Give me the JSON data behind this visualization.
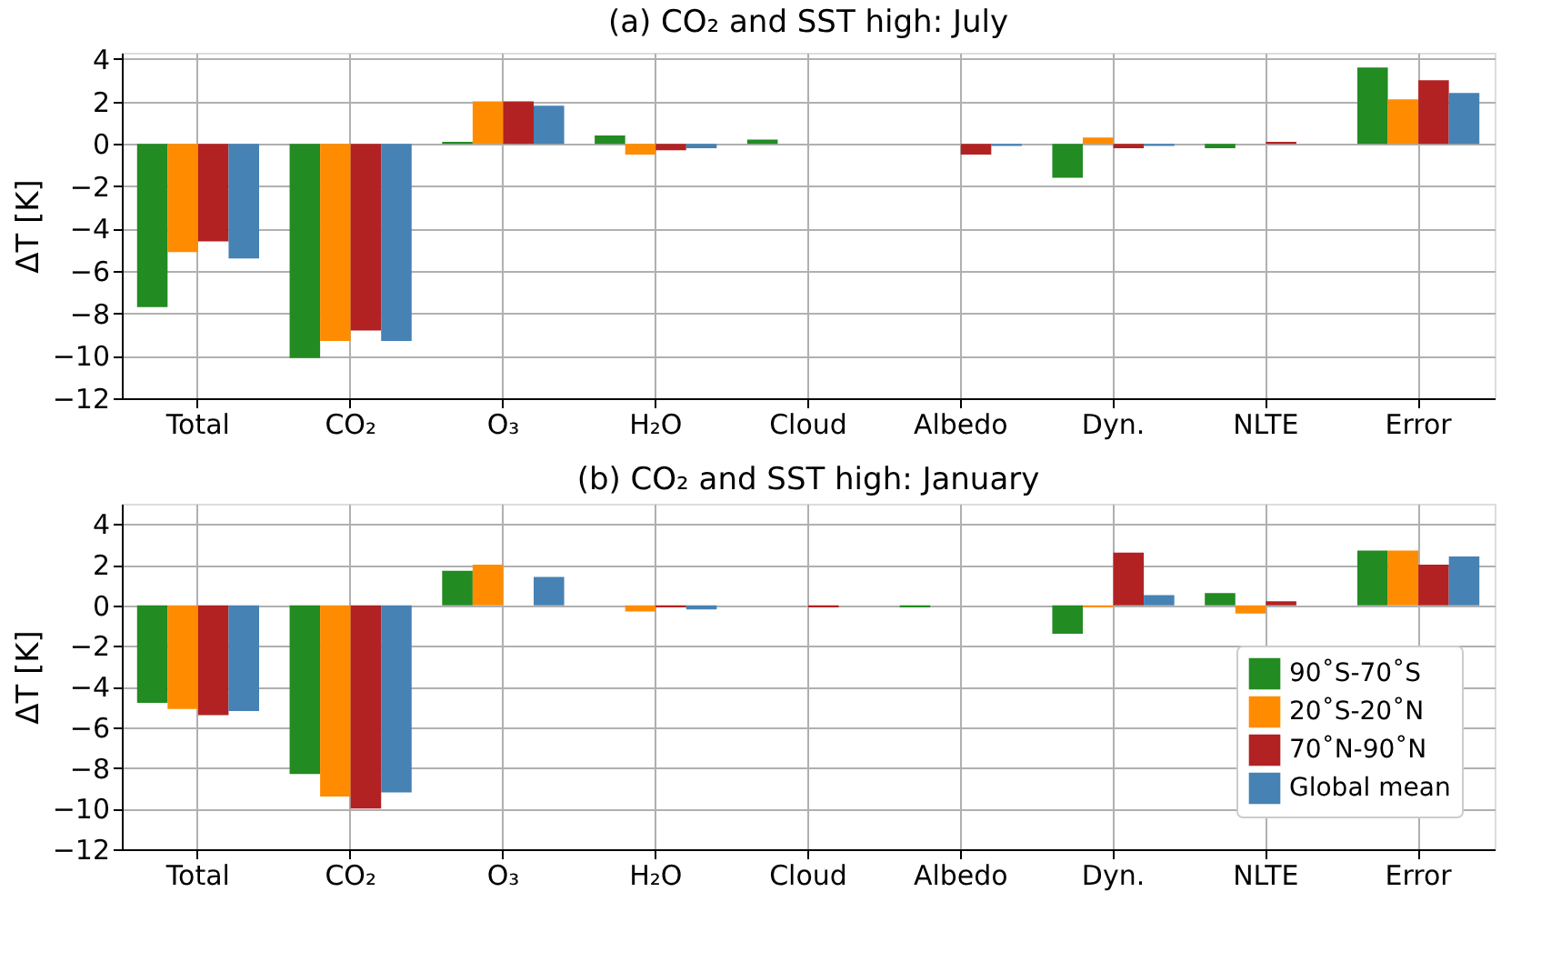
{
  "chart_data": [
    {
      "type": "bar",
      "title": "(a) CO₂ and SST high: July",
      "ylabel": "ΔT [K]",
      "categories": [
        "Total",
        "CO₂",
        "O₃",
        "H₂O",
        "Cloud",
        "Albedo",
        "Dyn.",
        "NLTE",
        "Error"
      ],
      "series": [
        {
          "color": "#228b22",
          "values": [
            -7.7,
            -10.1,
            0.1,
            0.4,
            0.2,
            0.0,
            -1.6,
            -0.2,
            3.6
          ]
        },
        {
          "color": "#ff8c00",
          "values": [
            -5.1,
            -9.3,
            2.0,
            -0.5,
            0.0,
            0.0,
            0.3,
            0.0,
            2.1
          ]
        },
        {
          "color": "#b22222",
          "values": [
            -4.6,
            -8.8,
            2.0,
            -0.3,
            0.0,
            -0.5,
            -0.2,
            0.1,
            3.0
          ]
        },
        {
          "color": "#4682b4",
          "values": [
            -5.4,
            -9.3,
            1.8,
            -0.2,
            0.0,
            -0.1,
            -0.1,
            0.0,
            2.4
          ]
        }
      ],
      "ylim": [
        -12,
        4.3
      ],
      "yticks": [
        -12,
        -10,
        -8,
        -6,
        -4,
        -2,
        0,
        2,
        4
      ],
      "grid": true
    },
    {
      "type": "bar",
      "title": "(b) CO₂ and SST high: January",
      "ylabel": "ΔT [K]",
      "categories": [
        "Total",
        "CO₂",
        "O₃",
        "H₂O",
        "Cloud",
        "Albedo",
        "Dyn.",
        "NLTE",
        "Error"
      ],
      "series": [
        {
          "name": "90˚S-70˚S",
          "color": "#228b22",
          "values": [
            -4.8,
            -8.3,
            1.7,
            0.0,
            0.0,
            -0.1,
            -1.4,
            0.6,
            2.7
          ]
        },
        {
          "name": "20˚S-20˚N",
          "color": "#ff8c00",
          "values": [
            -5.1,
            -9.4,
            2.0,
            -0.3,
            0.0,
            0.0,
            -0.1,
            -0.4,
            2.7
          ]
        },
        {
          "name": "70˚N-90˚N",
          "color": "#b22222",
          "values": [
            -5.4,
            -10.0,
            0.0,
            -0.1,
            -0.1,
            0.0,
            2.6,
            0.2,
            2.0
          ]
        },
        {
          "name": "Global mean",
          "color": "#4682b4",
          "values": [
            -5.2,
            -9.2,
            1.4,
            -0.2,
            0.0,
            0.0,
            0.5,
            0.0,
            2.4
          ]
        }
      ],
      "ylim": [
        -12,
        5
      ],
      "yticks": [
        -12,
        -10,
        -8,
        -6,
        -4,
        -2,
        0,
        2,
        4
      ],
      "grid": true,
      "legend": "bottom right"
    }
  ]
}
